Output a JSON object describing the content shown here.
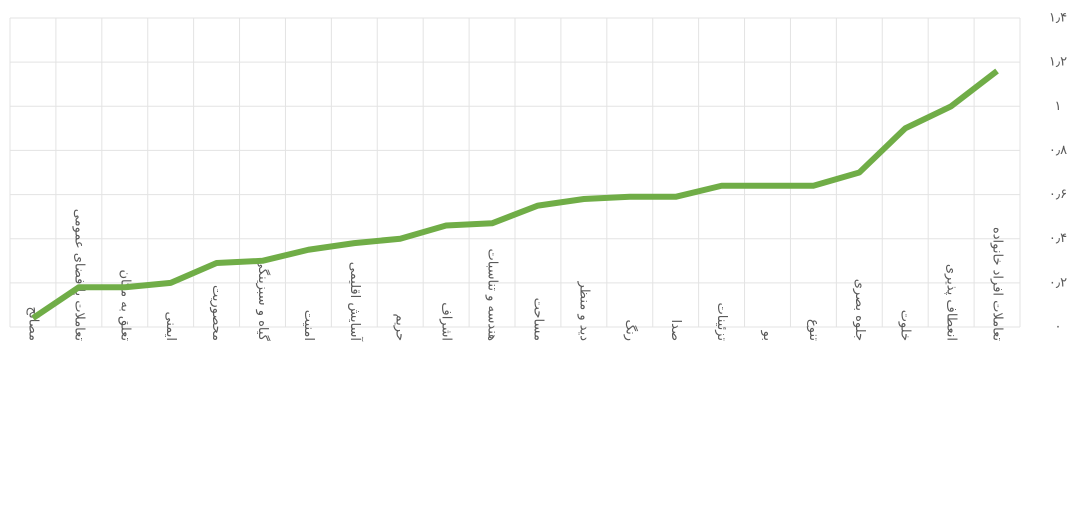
{
  "chart_data": {
    "type": "line",
    "categories": [
      "مصالح",
      "تعاملات با فضای عمومی",
      "تعلق به مکان",
      "ایمنی",
      "محصوریت",
      "گیاه و سبزینگی",
      "امنیت",
      "آسایش اقلیمی",
      "حریم",
      "اشراف",
      "هندسه و تناسبات",
      "مساحت",
      "دید و منظر",
      "رنگ",
      "صدا",
      "تزئینات",
      "بو",
      "تنوع",
      "جلوه بصری",
      "خلوت",
      "انعطاف پذیری",
      "تعاملات افراد خانواده"
    ],
    "series": [
      {
        "color": "#70ad47",
        "values": [
          0.04,
          0.18,
          0.18,
          0.2,
          0.29,
          0.3,
          0.35,
          0.38,
          0.4,
          0.46,
          0.47,
          0.55,
          0.58,
          0.59,
          0.59,
          0.64,
          0.64,
          0.64,
          0.7,
          0.9,
          1.0,
          1.16
        ]
      }
    ],
    "ylim": [
      0,
      1.4
    ],
    "yticks": [
      {
        "value": 0,
        "label": "۰"
      },
      {
        "value": 0.2,
        "label": "۰٫۲"
      },
      {
        "value": 0.4,
        "label": "۰٫۴"
      },
      {
        "value": 0.6,
        "label": "۰٫۶"
      },
      {
        "value": 0.8,
        "label": "۰٫۸"
      },
      {
        "value": 1,
        "label": "۱"
      },
      {
        "value": 1.2,
        "label": "۱٫۲"
      },
      {
        "value": 1.4,
        "label": "۱٫۴"
      }
    ],
    "grid": true
  }
}
